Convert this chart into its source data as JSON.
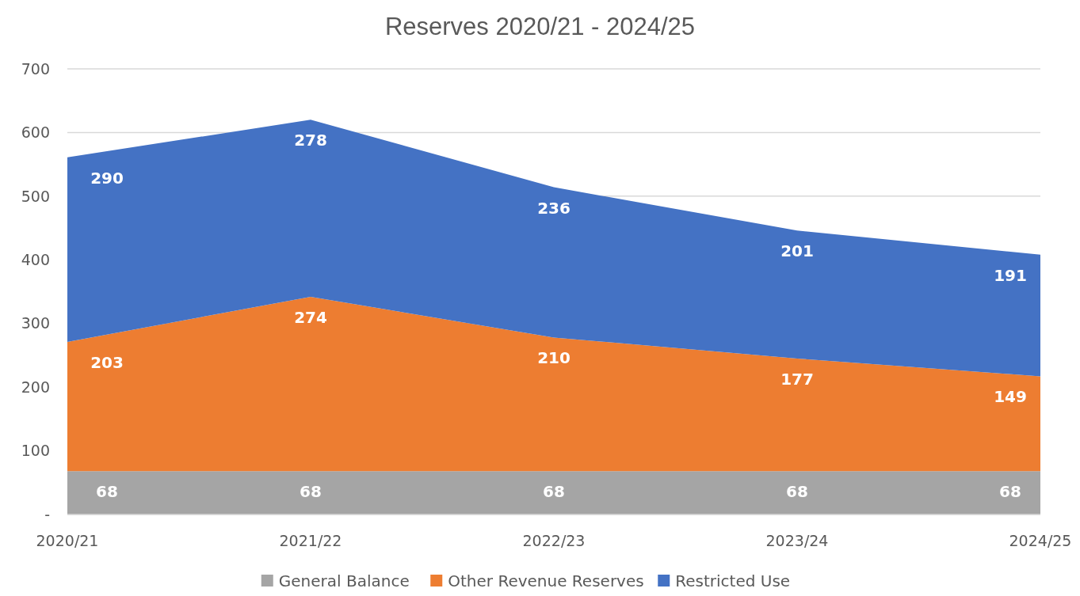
{
  "chart_data": {
    "type": "area",
    "title": "Reserves 2020/21 - 2024/25",
    "stacked": true,
    "categories": [
      "2020/21",
      "2021/22",
      "2022/23",
      "2023/24",
      "2024/25"
    ],
    "series": [
      {
        "name": "General Balance",
        "color": "#a5a5a5",
        "values": [
          68,
          68,
          68,
          68,
          68
        ]
      },
      {
        "name": "Other Revenue Reserves",
        "color": "#ed7d31",
        "values": [
          203,
          274,
          210,
          177,
          149
        ]
      },
      {
        "name": "Restricted Use",
        "color": "#4472c4",
        "values": [
          290,
          278,
          236,
          201,
          191
        ]
      }
    ],
    "ylim": [
      0,
      700
    ],
    "yticks": [
      {
        "value": 0,
        "label": "-"
      },
      100,
      200,
      300,
      400,
      500,
      600,
      700
    ],
    "grid": "y",
    "legend": "bottom",
    "data_labels": true
  }
}
